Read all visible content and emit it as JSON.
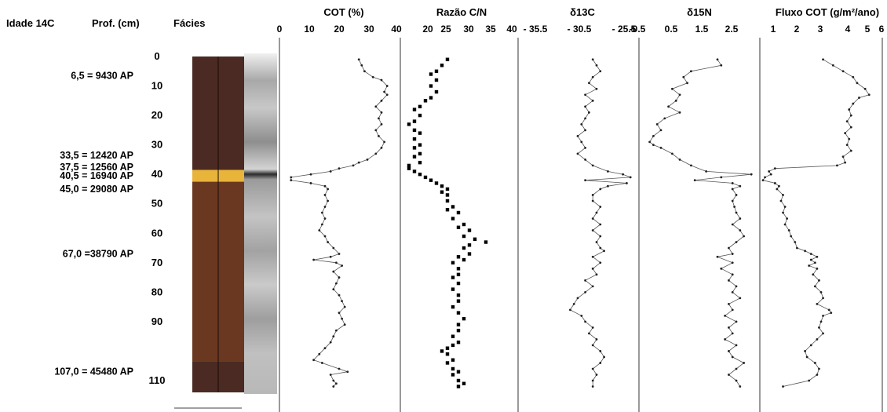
{
  "headers": {
    "age": "Idade 14C",
    "depth": "Prof. (cm)",
    "facies": "Fácies"
  },
  "age_labels": [
    {
      "depth": 6.5,
      "text": "6,5 = 9430 AP"
    },
    {
      "depth": 33.5,
      "text": "33,5 = 12420 AP"
    },
    {
      "depth": 37.5,
      "text": "37,5 = 12560 AP"
    },
    {
      "depth": 40.5,
      "text": "40,5 = 16940 AP"
    },
    {
      "depth": 45.0,
      "text": "45,0 = 29080 AP"
    },
    {
      "depth": 67.0,
      "text": "67,0 =38790 AP"
    },
    {
      "depth": 107.0,
      "text": "107,0 = 45480 AP"
    }
  ],
  "depth_ticks": [
    0,
    10,
    20,
    30,
    40,
    50,
    60,
    70,
    80,
    90,
    110
  ],
  "facies": [
    {
      "from": 0,
      "to": 38.5,
      "color": "#4a2a22"
    },
    {
      "from": 38.5,
      "to": 42.5,
      "color": "#e8b43a"
    },
    {
      "from": 42.5,
      "to": 103.5,
      "color": "#6a3820"
    },
    {
      "from": 103.5,
      "to": 114,
      "color": "#4a2a22"
    }
  ],
  "chart_data": [
    {
      "type": "line",
      "title": "COT (%)",
      "tick_labels": [
        "0",
        "10",
        "20",
        "30",
        "40"
      ],
      "xlim": [
        0,
        40
      ],
      "ylim": [
        0,
        114
      ],
      "marker": "dot",
      "points": [
        [
          27,
          1
        ],
        [
          28,
          3
        ],
        [
          29,
          5
        ],
        [
          32,
          7
        ],
        [
          35,
          8
        ],
        [
          37,
          10
        ],
        [
          36,
          12
        ],
        [
          37,
          13
        ],
        [
          35,
          15
        ],
        [
          33,
          17
        ],
        [
          35,
          19
        ],
        [
          34,
          21
        ],
        [
          35,
          23
        ],
        [
          33,
          25
        ],
        [
          34,
          27
        ],
        [
          36,
          29
        ],
        [
          35,
          31
        ],
        [
          33,
          33
        ],
        [
          30,
          35
        ],
        [
          27,
          36
        ],
        [
          25,
          37
        ],
        [
          20,
          38
        ],
        [
          17,
          39
        ],
        [
          10,
          40
        ],
        [
          3,
          41
        ],
        [
          3,
          42
        ],
        [
          10,
          43
        ],
        [
          15,
          44
        ],
        [
          16,
          45
        ],
        [
          15,
          47
        ],
        [
          16,
          49
        ],
        [
          15,
          51
        ],
        [
          14,
          53
        ],
        [
          15,
          55
        ],
        [
          14,
          57
        ],
        [
          13,
          59
        ],
        [
          15,
          61
        ],
        [
          16,
          63
        ],
        [
          18,
          65
        ],
        [
          20,
          67
        ],
        [
          17,
          68
        ],
        [
          11,
          69
        ],
        [
          19,
          70
        ],
        [
          21,
          71
        ],
        [
          18,
          73
        ],
        [
          20,
          75
        ],
        [
          19,
          77
        ],
        [
          18,
          79
        ],
        [
          20,
          81
        ],
        [
          21,
          83
        ],
        [
          22,
          85
        ],
        [
          20,
          87
        ],
        [
          21,
          89
        ],
        [
          22,
          91
        ],
        [
          19,
          93
        ],
        [
          18,
          95
        ],
        [
          17,
          97
        ],
        [
          15,
          99
        ],
        [
          13,
          101
        ],
        [
          11,
          103
        ],
        [
          14,
          104
        ],
        [
          20,
          106
        ],
        [
          23,
          107
        ],
        [
          17,
          108
        ],
        [
          18,
          110
        ],
        [
          19,
          111
        ],
        [
          18,
          112
        ]
      ]
    },
    {
      "type": "scatter",
      "title": "Razão C/N",
      "tick_labels": [
        "20",
        "25",
        "30",
        "35",
        "40"
      ],
      "xlim": [
        20,
        40
      ],
      "ylim": [
        0,
        114
      ],
      "marker": "square",
      "points": [
        [
          28,
          1
        ],
        [
          27,
          3
        ],
        [
          26,
          5
        ],
        [
          25,
          6
        ],
        [
          26,
          8
        ],
        [
          25,
          10
        ],
        [
          26,
          12
        ],
        [
          25,
          14
        ],
        [
          24,
          15
        ],
        [
          23,
          17
        ],
        [
          22,
          18
        ],
        [
          23,
          20
        ],
        [
          22,
          22
        ],
        [
          21,
          23
        ],
        [
          22,
          25
        ],
        [
          23,
          26
        ],
        [
          22,
          28
        ],
        [
          23,
          30
        ],
        [
          22,
          31
        ],
        [
          23,
          33
        ],
        [
          22,
          34
        ],
        [
          23,
          36
        ],
        [
          21,
          37
        ],
        [
          21,
          38
        ],
        [
          22,
          39
        ],
        [
          23,
          40
        ],
        [
          24,
          41
        ],
        [
          25,
          42
        ],
        [
          26,
          43
        ],
        [
          27,
          44
        ],
        [
          28,
          45
        ],
        [
          27,
          46
        ],
        [
          28,
          47
        ],
        [
          28,
          49
        ],
        [
          29,
          51
        ],
        [
          28,
          52
        ],
        [
          30,
          53
        ],
        [
          29,
          55
        ],
        [
          31,
          57
        ],
        [
          30,
          58
        ],
        [
          32,
          59
        ],
        [
          31,
          61
        ],
        [
          33,
          62
        ],
        [
          35,
          63
        ],
        [
          32,
          64
        ],
        [
          31,
          65
        ],
        [
          32,
          67
        ],
        [
          30,
          68
        ],
        [
          31,
          69
        ],
        [
          29,
          70
        ],
        [
          30,
          72
        ],
        [
          30,
          74
        ],
        [
          29,
          75
        ],
        [
          30,
          77
        ],
        [
          29,
          79
        ],
        [
          30,
          81
        ],
        [
          30,
          83
        ],
        [
          29,
          85
        ],
        [
          30,
          87
        ],
        [
          31,
          89
        ],
        [
          30,
          91
        ],
        [
          30,
          93
        ],
        [
          29,
          95
        ],
        [
          30,
          97
        ],
        [
          29,
          98
        ],
        [
          28,
          99
        ],
        [
          27,
          100
        ],
        [
          28,
          101
        ],
        [
          29,
          103
        ],
        [
          28,
          104
        ],
        [
          29,
          106
        ],
        [
          30,
          107
        ],
        [
          29,
          108
        ],
        [
          30,
          110
        ],
        [
          31,
          111
        ],
        [
          30,
          112
        ]
      ]
    },
    {
      "type": "line",
      "title": "δ13C",
      "tick_labels": [
        "- 35.5",
        "- 30.5",
        "- 25.5"
      ],
      "xlim": [
        -40.5,
        -25.5
      ],
      "ylim": [
        0,
        114
      ],
      "marker": "dot",
      "points": [
        [
          -31,
          1
        ],
        [
          -30.5,
          3
        ],
        [
          -30,
          5
        ],
        [
          -31,
          7
        ],
        [
          -31.5,
          9
        ],
        [
          -30.5,
          11
        ],
        [
          -32,
          13
        ],
        [
          -31,
          15
        ],
        [
          -32,
          17
        ],
        [
          -31.5,
          19
        ],
        [
          -32,
          21
        ],
        [
          -32.5,
          23
        ],
        [
          -32,
          25
        ],
        [
          -33,
          27
        ],
        [
          -32.5,
          29
        ],
        [
          -32,
          31
        ],
        [
          -33,
          33
        ],
        [
          -32,
          35
        ],
        [
          -31,
          37
        ],
        [
          -29,
          39
        ],
        [
          -27,
          40
        ],
        [
          -26,
          41
        ],
        [
          -32,
          42
        ],
        [
          -26.5,
          43
        ],
        [
          -29,
          44
        ],
        [
          -30,
          45
        ],
        [
          -31,
          47
        ],
        [
          -31,
          49
        ],
        [
          -30,
          51
        ],
        [
          -30.5,
          53
        ],
        [
          -31,
          55
        ],
        [
          -30,
          57
        ],
        [
          -31,
          59
        ],
        [
          -30,
          61
        ],
        [
          -30.5,
          63
        ],
        [
          -30,
          65
        ],
        [
          -29.5,
          66
        ],
        [
          -31,
          68
        ],
        [
          -30,
          70
        ],
        [
          -31,
          72
        ],
        [
          -30.5,
          74
        ],
        [
          -32,
          76
        ],
        [
          -31,
          78
        ],
        [
          -32,
          80
        ],
        [
          -33,
          82
        ],
        [
          -33.5,
          84
        ],
        [
          -34,
          86
        ],
        [
          -32.5,
          88
        ],
        [
          -32,
          90
        ],
        [
          -31,
          92
        ],
        [
          -31.5,
          94
        ],
        [
          -30.5,
          96
        ],
        [
          -31,
          98
        ],
        [
          -30,
          100
        ],
        [
          -29.5,
          102
        ],
        [
          -30,
          104
        ],
        [
          -31,
          106
        ],
        [
          -30.5,
          108
        ],
        [
          -31,
          110
        ],
        [
          -31,
          112
        ]
      ]
    },
    {
      "type": "line",
      "title": "δ15N",
      "tick_labels": [
        "-0.5",
        "0.5",
        "1.5",
        "2.5"
      ],
      "xlim": [
        -0.5,
        2.5
      ],
      "ylim": [
        0,
        114
      ],
      "marker": "dot",
      "points": [
        [
          1.5,
          1
        ],
        [
          1.6,
          3
        ],
        [
          0.8,
          5
        ],
        [
          0.6,
          7
        ],
        [
          0.7,
          9
        ],
        [
          0.3,
          11
        ],
        [
          0.5,
          13
        ],
        [
          0.4,
          15
        ],
        [
          0.2,
          17
        ],
        [
          0.5,
          19
        ],
        [
          0.1,
          21
        ],
        [
          -0.1,
          23
        ],
        [
          0,
          25
        ],
        [
          -0.2,
          27
        ],
        [
          -0.3,
          29
        ],
        [
          -0.2,
          30
        ],
        [
          0,
          31
        ],
        [
          0.3,
          33
        ],
        [
          0.5,
          35
        ],
        [
          0.8,
          37
        ],
        [
          1.2,
          39
        ],
        [
          2.4,
          40
        ],
        [
          1.6,
          41
        ],
        [
          0.9,
          42
        ],
        [
          1.9,
          43
        ],
        [
          2.1,
          44
        ],
        [
          1.9,
          45
        ],
        [
          2,
          47
        ],
        [
          1.9,
          49
        ],
        [
          1.95,
          51
        ],
        [
          2,
          53
        ],
        [
          2.1,
          55
        ],
        [
          1.9,
          57
        ],
        [
          2.1,
          59
        ],
        [
          2.2,
          61
        ],
        [
          2,
          63
        ],
        [
          1.8,
          65
        ],
        [
          1.9,
          67
        ],
        [
          1.5,
          68
        ],
        [
          1.9,
          70
        ],
        [
          1.6,
          72
        ],
        [
          1.9,
          74
        ],
        [
          1.8,
          76
        ],
        [
          2,
          78
        ],
        [
          1.9,
          80
        ],
        [
          2.1,
          82
        ],
        [
          1.8,
          84
        ],
        [
          1.9,
          86
        ],
        [
          1.7,
          88
        ],
        [
          2,
          90
        ],
        [
          1.8,
          92
        ],
        [
          1.9,
          94
        ],
        [
          1.7,
          96
        ],
        [
          2,
          98
        ],
        [
          1.8,
          100
        ],
        [
          1.9,
          102
        ],
        [
          2.2,
          104
        ],
        [
          2,
          106
        ],
        [
          1.8,
          108
        ],
        [
          2,
          110
        ],
        [
          2.1,
          112
        ]
      ]
    },
    {
      "type": "line",
      "title": "Fluxo COT (g/m²/ano)",
      "tick_labels": [
        "1",
        "2",
        "3",
        "4",
        "5",
        "6"
      ],
      "xlim": [
        0.5,
        6.3
      ],
      "ylim": [
        0,
        114
      ],
      "marker": "dot",
      "points": [
        [
          3.5,
          1
        ],
        [
          4,
          3
        ],
        [
          4.5,
          5
        ],
        [
          5,
          7
        ],
        [
          5.2,
          9
        ],
        [
          5.6,
          11
        ],
        [
          5.8,
          13
        ],
        [
          5.3,
          14
        ],
        [
          5,
          16
        ],
        [
          4.8,
          18
        ],
        [
          4.9,
          20
        ],
        [
          4.7,
          22
        ],
        [
          4.9,
          24
        ],
        [
          4.6,
          26
        ],
        [
          4.8,
          28
        ],
        [
          4.7,
          30
        ],
        [
          4.9,
          32
        ],
        [
          4.5,
          34
        ],
        [
          4.6,
          36
        ],
        [
          4.2,
          37
        ],
        [
          1.1,
          38
        ],
        [
          0.8,
          39
        ],
        [
          0.9,
          40
        ],
        [
          0.6,
          41
        ],
        [
          0.5,
          42
        ],
        [
          1.1,
          43
        ],
        [
          1.3,
          44
        ],
        [
          1.2,
          45
        ],
        [
          1.5,
          47
        ],
        [
          1.4,
          49
        ],
        [
          1.6,
          51
        ],
        [
          1.5,
          53
        ],
        [
          1.7,
          55
        ],
        [
          1.6,
          57
        ],
        [
          1.8,
          59
        ],
        [
          1.9,
          61
        ],
        [
          2.1,
          63
        ],
        [
          2.2,
          65
        ],
        [
          2.6,
          66
        ],
        [
          2.9,
          67
        ],
        [
          3.2,
          68
        ],
        [
          2.9,
          69
        ],
        [
          3.1,
          70
        ],
        [
          2.8,
          71
        ],
        [
          3.2,
          72
        ],
        [
          3,
          74
        ],
        [
          3.3,
          76
        ],
        [
          3.1,
          78
        ],
        [
          3.4,
          80
        ],
        [
          3.5,
          82
        ],
        [
          3.2,
          84
        ],
        [
          3.8,
          86
        ],
        [
          3.9,
          87
        ],
        [
          3.5,
          88
        ],
        [
          3.4,
          90
        ],
        [
          3.3,
          92
        ],
        [
          3.5,
          94
        ],
        [
          3.2,
          96
        ],
        [
          2.9,
          98
        ],
        [
          2.6,
          100
        ],
        [
          2.7,
          102
        ],
        [
          3.1,
          104
        ],
        [
          3.3,
          106
        ],
        [
          3.2,
          108
        ],
        [
          2.8,
          110
        ],
        [
          1.5,
          112
        ]
      ]
    }
  ]
}
